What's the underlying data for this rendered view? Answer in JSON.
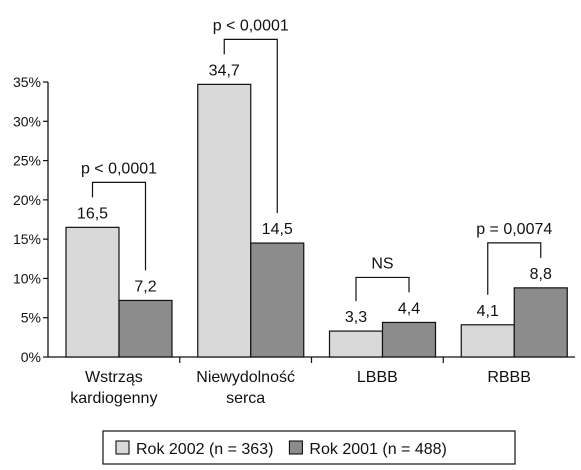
{
  "chart_data": {
    "type": "bar",
    "categories": [
      [
        "Wstrząs",
        "kardiogenny"
      ],
      [
        "Niewydolność",
        "serca"
      ],
      [
        "LBBB"
      ],
      [
        "RBBB"
      ]
    ],
    "series": [
      {
        "name": "Rok 2002 (n = 363)",
        "values": [
          16.5,
          34.7,
          3.3,
          4.1
        ],
        "labels": [
          "16,5",
          "34,7",
          "3,3",
          "4,1"
        ],
        "color": "#d9d9d9"
      },
      {
        "name": "Rok 2001 (n = 488)",
        "values": [
          7.2,
          14.5,
          4.4,
          8.8
        ],
        "labels": [
          "7,2",
          "14,5",
          "4,4",
          "8,8"
        ],
        "color": "#8c8c8c"
      }
    ],
    "ylim": [
      0,
      35
    ],
    "yticks": [
      0,
      5,
      10,
      15,
      20,
      25,
      30,
      35
    ],
    "ytick_labels": [
      "0%",
      "5%",
      "10%",
      "15%",
      "20%",
      "25%",
      "30%",
      "35%"
    ],
    "significance": [
      "p < 0,0001",
      "p < 0,0001",
      "NS",
      "p = 0,0074"
    ],
    "legend_position": "bottom",
    "grid": false
  }
}
